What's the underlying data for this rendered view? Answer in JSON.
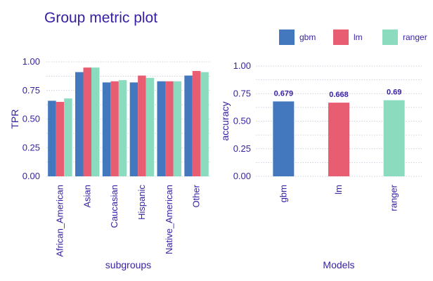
{
  "chart_data": [
    {
      "type": "bar",
      "title": "Group metric plot",
      "xlabel": "subgroups",
      "ylabel": "TPR",
      "ylim": [
        0,
        1.0
      ],
      "yticks": [
        "0.00",
        "0.25",
        "0.50",
        "0.75",
        "1.00"
      ],
      "grid": true,
      "categories": [
        "African_American",
        "Asian",
        "Caucasian",
        "Hispanic",
        "Native_American",
        "Other"
      ],
      "series": [
        {
          "name": "gbm",
          "values": [
            0.66,
            0.91,
            0.82,
            0.82,
            0.83,
            0.88
          ]
        },
        {
          "name": "lm",
          "values": [
            0.65,
            0.95,
            0.83,
            0.88,
            0.83,
            0.92
          ]
        },
        {
          "name": "ranger",
          "values": [
            0.68,
            0.95,
            0.84,
            0.86,
            0.83,
            0.91
          ]
        }
      ]
    },
    {
      "type": "bar",
      "xlabel": "Models",
      "ylabel": "accuracy",
      "ylim": [
        0,
        1.0
      ],
      "yticks": [
        "0.00",
        "0.25",
        "0.50",
        "0.75",
        "1.00"
      ],
      "grid": true,
      "legend_position": "top",
      "categories": [
        "gbm",
        "lm",
        "ranger"
      ],
      "values": [
        0.679,
        0.668,
        0.69
      ],
      "data_labels": [
        "0.679",
        "0.668",
        "0.69"
      ]
    }
  ],
  "colors": {
    "gbm": "#4378bf",
    "lm": "#e85d71",
    "ranger": "#8bdcbe",
    "text": "#371ea3",
    "grid": "#bfc3d6"
  }
}
